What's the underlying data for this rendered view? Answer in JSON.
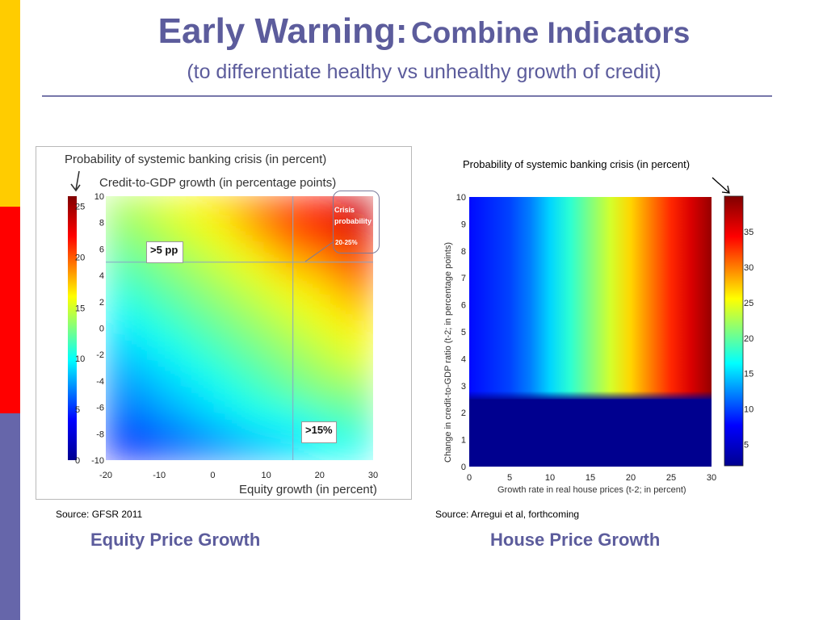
{
  "slide": {
    "title_main": "Early Warning:",
    "title_sub": "Combine Indicators",
    "subtitle": "(to differentiate healthy vs unhealthy growth of credit)"
  },
  "left_panel": {
    "source": "Source: GFSR 2011",
    "caption": "Equity Price Growth",
    "annotation_5pp": ">5 pp",
    "annotation_15": ">15%",
    "crisis_label_1": "Crisis",
    "crisis_label_2": "probability",
    "crisis_range": "20-25%"
  },
  "right_panel": {
    "source": "Source: Arregui et al, forthcoming",
    "caption": "House Price Growth"
  },
  "colors": {
    "title": "#5c5c9c",
    "bar_yellow": "#ffcc00",
    "bar_red": "#ff0000",
    "bar_purple": "#6666aa"
  },
  "chart_data": [
    {
      "type": "heatmap",
      "title": "Probability of systemic banking crisis (in percent)",
      "subtitle": "Credit-to-GDP growth (in percentage points)",
      "xlabel": "Equity growth (in percent)",
      "ylabel": "Credit-to-GDP growth (in percentage points)",
      "xlim": [
        -20,
        30
      ],
      "ylim": [
        -10,
        10
      ],
      "x_ticks": [
        "-20",
        "-10",
        "0",
        "10",
        "20",
        "30"
      ],
      "y_ticks": [
        "10",
        "8",
        "6",
        "4",
        "2",
        "0",
        "-2",
        "-4",
        "-6",
        "-8",
        "-10"
      ],
      "colorbar_ticks": [
        "25",
        "20",
        "15",
        "10",
        "5",
        "0"
      ],
      "colorbar_range": [
        0,
        26
      ],
      "threshold_x": 15,
      "threshold_y": 5,
      "grid": [
        [
          14,
          15,
          16,
          17,
          19,
          21,
          22,
          24
        ],
        [
          13,
          14,
          15,
          16,
          18,
          20,
          21,
          23
        ],
        [
          12,
          13,
          14,
          15,
          16,
          18,
          19,
          21
        ],
        [
          11,
          12,
          13,
          14,
          15,
          16,
          17,
          19
        ],
        [
          10,
          11,
          12,
          13,
          14,
          15,
          16,
          17
        ],
        [
          9,
          10,
          11,
          12,
          13,
          14,
          15,
          16
        ],
        [
          8,
          9,
          10,
          11,
          12,
          13,
          14,
          15
        ],
        [
          7,
          8,
          9,
          10,
          11,
          12,
          13,
          13
        ],
        [
          6,
          7,
          8,
          9,
          10,
          10,
          11,
          12
        ],
        [
          4,
          5,
          6,
          7,
          8,
          9,
          10,
          10
        ]
      ]
    },
    {
      "type": "heatmap",
      "title": "Probability of systemic banking crisis (in percent)",
      "xlabel": "Growth rate in real house prices (t-2; in percent)",
      "ylabel": "Change in credit-to-GDP ratio (t-2; in percentage points)",
      "xlim": [
        0,
        30
      ],
      "ylim": [
        0,
        10
      ],
      "x_ticks": [
        "0",
        "5",
        "10",
        "15",
        "20",
        "25",
        "30"
      ],
      "y_ticks": [
        "10",
        "9",
        "8",
        "7",
        "6",
        "5",
        "4",
        "3",
        "2",
        "1",
        "0"
      ],
      "colorbar_ticks": [
        "35",
        "30",
        "25",
        "20",
        "15",
        "10",
        "5"
      ],
      "colorbar_range": [
        2,
        40
      ],
      "threshold_y": 2.5,
      "grid_below_threshold": [
        2,
        2,
        2,
        2,
        2,
        2,
        2,
        2,
        2,
        2,
        2,
        2,
        2
      ],
      "grid_above_threshold": [
        8,
        9,
        10,
        12,
        15,
        18,
        21,
        24,
        27,
        30,
        33,
        36,
        39
      ]
    }
  ]
}
